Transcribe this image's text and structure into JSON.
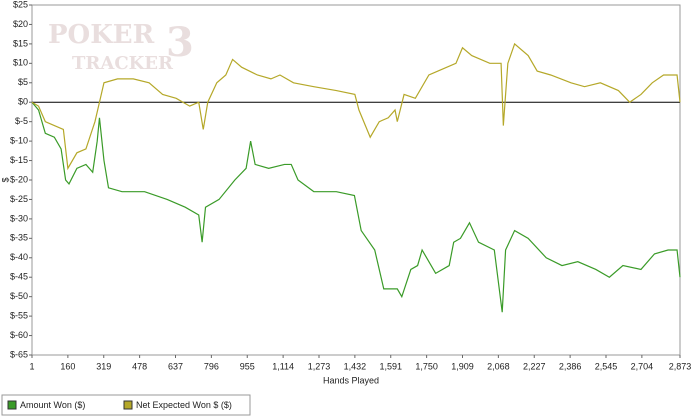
{
  "chart_data": {
    "type": "line",
    "watermark": {
      "line1": "POKER",
      "line2": "TRACKER",
      "mark": "3"
    },
    "x_label": "Hands Played",
    "y_label": "$",
    "xlim": [
      1,
      2873
    ],
    "ylim": [
      -65,
      25
    ],
    "xticks": [
      1,
      160,
      319,
      478,
      637,
      796,
      955,
      {
        "value": 1114,
        "label": "1,114"
      },
      {
        "value": 1273,
        "label": "1,273"
      },
      {
        "value": 1432,
        "label": "1,432"
      },
      {
        "value": 1591,
        "label": "1,591"
      },
      {
        "value": 1750,
        "label": "1,750"
      },
      {
        "value": 1909,
        "label": "1,909"
      },
      {
        "value": 2068,
        "label": "2,068"
      },
      {
        "value": 2227,
        "label": "2,227"
      },
      {
        "value": 2386,
        "label": "2,386"
      },
      {
        "value": 2545,
        "label": "2,545"
      },
      {
        "value": 2704,
        "label": "2,704"
      },
      {
        "value": 2873,
        "label": "2,873"
      }
    ],
    "yticks": [
      {
        "value": 25,
        "label": "$25"
      },
      {
        "value": 20,
        "label": "$20"
      },
      {
        "value": 15,
        "label": "$15"
      },
      {
        "value": 10,
        "label": "$10"
      },
      {
        "value": 5,
        "label": "$5"
      },
      {
        "value": 0,
        "label": "$0"
      },
      {
        "value": -5,
        "label": "$-5"
      },
      {
        "value": -10,
        "label": "$-10"
      },
      {
        "value": -15,
        "label": "$-15"
      },
      {
        "value": -20,
        "label": "$-20"
      },
      {
        "value": -25,
        "label": "$-25"
      },
      {
        "value": -30,
        "label": "$-30"
      },
      {
        "value": -35,
        "label": "$-35"
      },
      {
        "value": -40,
        "label": "$-40"
      },
      {
        "value": -45,
        "label": "$-45"
      },
      {
        "value": -50,
        "label": "$-50"
      },
      {
        "value": -55,
        "label": "$-55"
      },
      {
        "value": -60,
        "label": "$-60"
      },
      {
        "value": -65,
        "label": "$-65"
      }
    ],
    "series": [
      {
        "name": "Amount Won ($)",
        "color": "#3a9b28",
        "x": [
          1,
          30,
          60,
          100,
          130,
          150,
          165,
          200,
          240,
          270,
          290,
          300,
          320,
          340,
          400,
          500,
          600,
          680,
          740,
          755,
          770,
          830,
          900,
          950,
          970,
          990,
          1050,
          1120,
          1150,
          1180,
          1250,
          1350,
          1430,
          1460,
          1520,
          1560,
          1620,
          1640,
          1680,
          1710,
          1730,
          1790,
          1850,
          1870,
          1900,
          1940,
          1980,
          2050,
          2085,
          2100,
          2140,
          2200,
          2280,
          2350,
          2420,
          2500,
          2560,
          2620,
          2700,
          2760,
          2820,
          2860,
          2873
        ],
        "values": [
          0,
          -2,
          -8,
          -9,
          -12,
          -20,
          -21,
          -17,
          -16,
          -18,
          -10,
          -4,
          -15,
          -22,
          -23,
          -23,
          -25,
          -27,
          -29,
          -36,
          -27,
          -25,
          -20,
          -17,
          -10,
          -16,
          -17,
          -16,
          -16,
          -20,
          -23,
          -23,
          -24,
          -33,
          -38,
          -48,
          -48,
          -50,
          -43,
          -42,
          -38,
          -44,
          -42,
          -36,
          -35,
          -31,
          -36,
          -38,
          -54,
          -38,
          -33,
          -35,
          -40,
          -42,
          -41,
          -43,
          -45,
          -42,
          -43,
          -39,
          -38,
          -38,
          -45
        ]
      },
      {
        "name": "Net Expected Won $ ($)",
        "color": "#b5a829",
        "x": [
          1,
          30,
          60,
          100,
          140,
          160,
          200,
          240,
          280,
          300,
          320,
          380,
          450,
          520,
          580,
          640,
          700,
          740,
          760,
          780,
          820,
          860,
          890,
          930,
          1000,
          1060,
          1100,
          1160,
          1250,
          1350,
          1432,
          1450,
          1500,
          1540,
          1580,
          1610,
          1620,
          1650,
          1700,
          1760,
          1800,
          1880,
          1909,
          1950,
          2030,
          2080,
          2090,
          2110,
          2140,
          2200,
          2240,
          2300,
          2390,
          2450,
          2520,
          2600,
          2650,
          2700,
          2750,
          2800,
          2860,
          2873
        ],
        "values": [
          0,
          -1,
          -5,
          -6,
          -7,
          -17,
          -13,
          -12,
          -5,
          0,
          5,
          6,
          6,
          5,
          2,
          1,
          -1,
          0,
          -7,
          0,
          5,
          7,
          11,
          9,
          7,
          6,
          7,
          5,
          4,
          3,
          2,
          -2,
          -9,
          -5,
          -4,
          -2,
          -5,
          2,
          1,
          7,
          8,
          10,
          14,
          12,
          10,
          10,
          -6,
          10,
          15,
          12,
          8,
          7,
          5,
          4,
          5,
          3,
          0,
          2,
          5,
          7,
          7,
          0
        ]
      }
    ]
  }
}
